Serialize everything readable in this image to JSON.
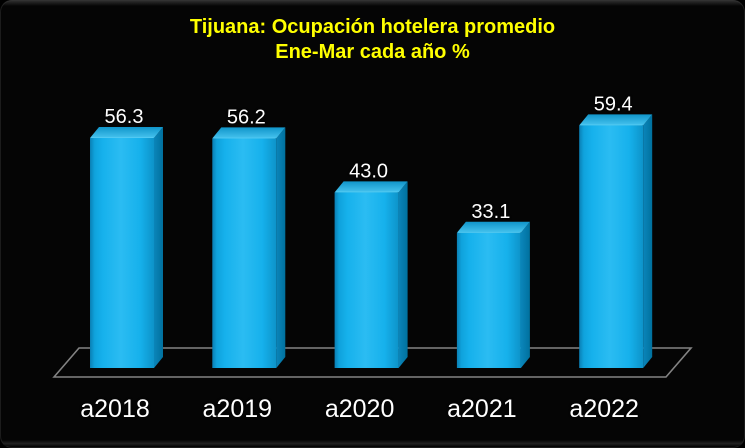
{
  "window": {
    "background": "#050505",
    "frame_bevel_color": "#343434"
  },
  "title": {
    "line1": "Tijuana: Ocupación hotelera promedio",
    "line2": "Ene-Mar cada año %",
    "color": "#FFFF00"
  },
  "chart_data": {
    "type": "bar",
    "style": "3d-column",
    "title": "Tijuana: Ocupación hotelera promedio",
    "subtitle": "Ene-Mar cada año %",
    "categories": [
      "a2018",
      "a2019",
      "a2020",
      "a2021",
      "a2022"
    ],
    "values": [
      56.3,
      56.2,
      43.0,
      33.1,
      59.4
    ],
    "value_labels": [
      "56.3",
      "56.2",
      "43.0",
      "33.1",
      "59.4"
    ],
    "xlabel": "",
    "ylabel": "",
    "grid": false,
    "legend": false,
    "value_axis_visible": false,
    "value_label_decimals": 1,
    "colors": {
      "bar_front_main": "#16B1EC",
      "bar_front_center": "#2BBCF2",
      "bar_front_edge": "#0A7FB4",
      "bar_top_front": "#46C3EF",
      "bar_top_back": "#1095CA",
      "bar_top_bevel": "#5FD0F5",
      "bar_side_dark": "#00719E",
      "bar_side_light": "#0B85BA",
      "floor_line": "#838383",
      "data_label": "#FFFFFF",
      "category_label": "#FFFFFF",
      "title": "#FFFF00",
      "background": "#050505"
    }
  }
}
